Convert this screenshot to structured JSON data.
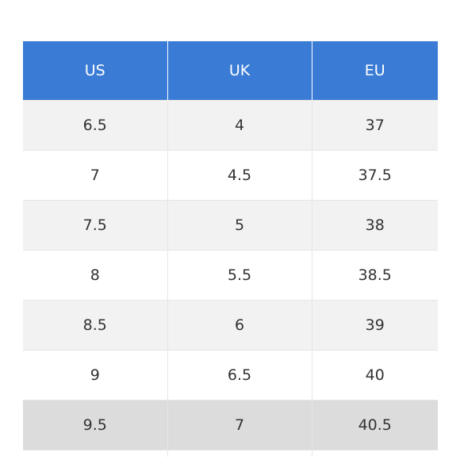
{
  "colors": {
    "header_bg": "#3a7bd5",
    "row_light": "#f2f2f3",
    "row_white": "#ffffff",
    "row_highlight": "#dcdcdc"
  },
  "table": {
    "headers": [
      "US",
      "UK",
      "EU"
    ],
    "rows": [
      [
        "6.5",
        "4",
        "37"
      ],
      [
        "7",
        "4.5",
        "37.5"
      ],
      [
        "7.5",
        "5",
        "38"
      ],
      [
        "8",
        "5.5",
        "38.5"
      ],
      [
        "8.5",
        "6",
        "39"
      ],
      [
        "9",
        "6.5",
        "40"
      ],
      [
        "9.5",
        "7",
        "40.5"
      ]
    ],
    "highlighted_row": 6
  }
}
